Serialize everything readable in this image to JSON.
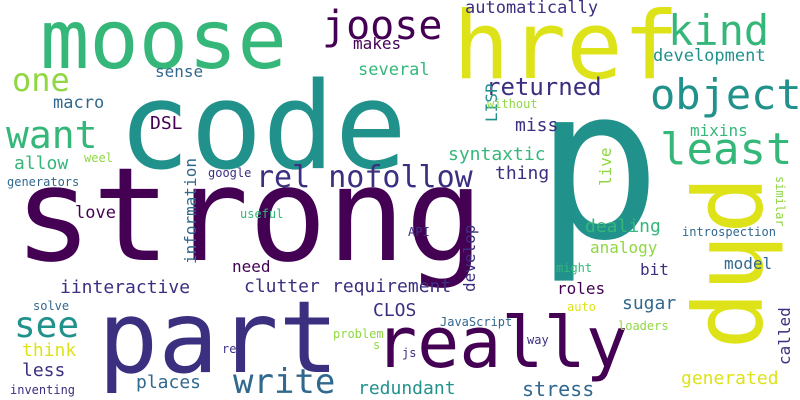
{
  "palette": {
    "dark_purple": "#440154",
    "indigo": "#3b2f80",
    "blue": "#31688e",
    "teal": "#21918c",
    "green": "#35b779",
    "lime": "#90d743",
    "yellow": "#dde318"
  },
  "words": [
    {
      "text": "strong",
      "color": "#440154"
    },
    {
      "text": "code",
      "color": "#21918c"
    },
    {
      "text": "p",
      "color": "#21918c"
    },
    {
      "text": "part",
      "color": "#3b2f80"
    },
    {
      "text": "really",
      "color": "#440154"
    },
    {
      "text": "php",
      "color": "#dde318"
    },
    {
      "text": "href",
      "color": "#dde318"
    },
    {
      "text": "moose",
      "color": "#35b779"
    },
    {
      "text": "joose",
      "color": "#440154"
    },
    {
      "text": "kind",
      "color": "#35b779"
    },
    {
      "text": "object",
      "color": "#21918c"
    },
    {
      "text": "least",
      "color": "#35b779"
    },
    {
      "text": "one",
      "color": "#90d743"
    },
    {
      "text": "want",
      "color": "#35b779"
    },
    {
      "text": "see",
      "color": "#21918c"
    },
    {
      "text": "write",
      "color": "#31688e"
    },
    {
      "text": "rel nofollow",
      "color": "#3b2f80"
    },
    {
      "text": "returned",
      "color": "#3b2f80"
    },
    {
      "text": "automatically",
      "color": "#3b2f80"
    },
    {
      "text": "makes",
      "color": "#440154"
    },
    {
      "text": "several",
      "color": "#35b779"
    },
    {
      "text": "development",
      "color": "#21918c"
    },
    {
      "text": "sense",
      "color": "#31688e"
    },
    {
      "text": "macro",
      "color": "#31688e"
    },
    {
      "text": "DSL",
      "color": "#440154"
    },
    {
      "text": "miss",
      "color": "#3b2f80"
    },
    {
      "text": "LISP",
      "color": "#21918c"
    },
    {
      "text": "without",
      "color": "#90d743"
    },
    {
      "text": "mixins",
      "color": "#35b779"
    },
    {
      "text": "syntaxtic",
      "color": "#35b779"
    },
    {
      "text": "allow",
      "color": "#35b779"
    },
    {
      "text": "weel",
      "color": "#90d743"
    },
    {
      "text": "generators",
      "color": "#31688e"
    },
    {
      "text": "thing",
      "color": "#3b2f80"
    },
    {
      "text": "live",
      "color": "#90d743"
    },
    {
      "text": "google",
      "color": "#3b2f80"
    },
    {
      "text": "information",
      "color": "#31688e"
    },
    {
      "text": "love",
      "color": "#440154"
    },
    {
      "text": "useful",
      "color": "#35b779"
    },
    {
      "text": "dealing",
      "color": "#35b779"
    },
    {
      "text": "similar",
      "color": "#90d743"
    },
    {
      "text": "introspection",
      "color": "#31688e"
    },
    {
      "text": "API",
      "color": "#3b2f80"
    },
    {
      "text": "analogy",
      "color": "#90d743"
    },
    {
      "text": "develop",
      "color": "#3b2f80"
    },
    {
      "text": "need",
      "color": "#440154"
    },
    {
      "text": "model",
      "color": "#31688e"
    },
    {
      "text": "bit",
      "color": "#3b2f80"
    },
    {
      "text": "iinteractive",
      "color": "#3b2f80"
    },
    {
      "text": "clutter",
      "color": "#3b2f80"
    },
    {
      "text": "requirement",
      "color": "#3b2f80"
    },
    {
      "text": "might",
      "color": "#35b779"
    },
    {
      "text": "sugar",
      "color": "#31688e"
    },
    {
      "text": "roles",
      "color": "#440154"
    },
    {
      "text": "auto",
      "color": "#dde318"
    },
    {
      "text": "CLOS",
      "color": "#3b2f80"
    },
    {
      "text": "called",
      "color": "#3b2f80"
    },
    {
      "text": "solve",
      "color": "#31688e"
    },
    {
      "text": "JavaScript",
      "color": "#31688e"
    },
    {
      "text": "loaders",
      "color": "#90d743"
    },
    {
      "text": "problem",
      "color": "#90d743"
    },
    {
      "text": "way",
      "color": "#3b2f80"
    },
    {
      "text": "think",
      "color": "#dde318"
    },
    {
      "text": "re",
      "color": "#3b2f80"
    },
    {
      "text": "s",
      "color": "#90d743"
    },
    {
      "text": "js",
      "color": "#3b2f80"
    },
    {
      "text": "less",
      "color": "#3b2f80"
    },
    {
      "text": "places",
      "color": "#31688e"
    },
    {
      "text": "generated",
      "color": "#dde318"
    },
    {
      "text": "inventing",
      "color": "#3b2f80"
    },
    {
      "text": "redundant",
      "color": "#21918c"
    },
    {
      "text": "stress",
      "color": "#31688e"
    }
  ]
}
